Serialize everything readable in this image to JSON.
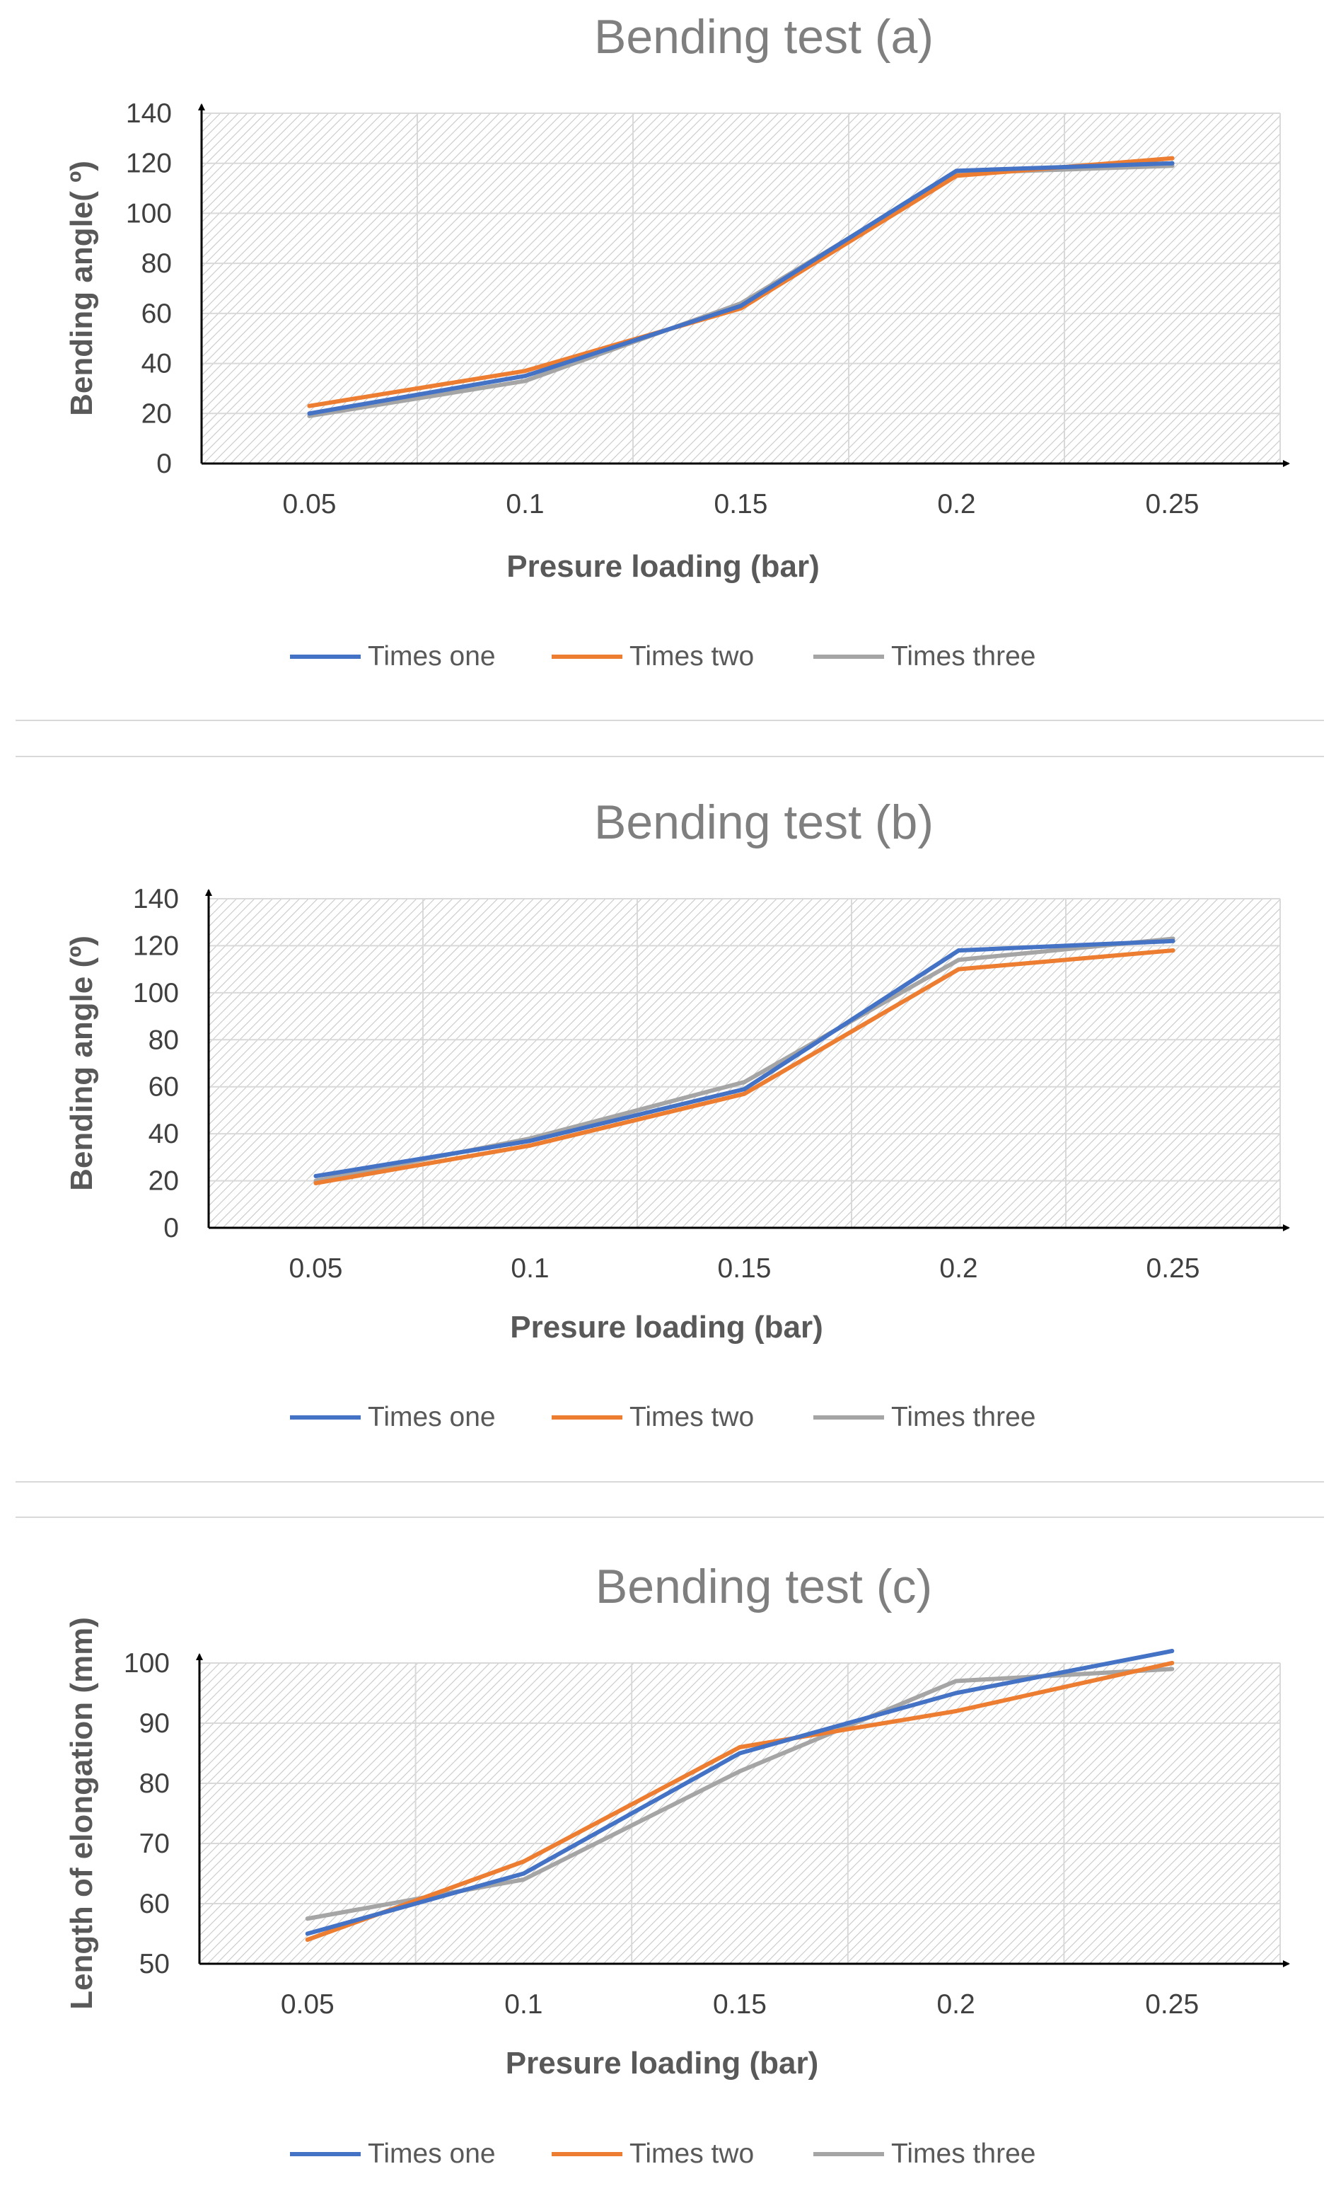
{
  "chart_data": [
    {
      "type": "line",
      "title": "Bending test (a)",
      "xlabel": "Presure loading (bar)",
      "ylabel": "Bending angle( º)",
      "categories": [
        "0.05",
        "0.1",
        "0.15",
        "0.2",
        "0.25"
      ],
      "ylim": [
        0,
        140
      ],
      "yticks": [
        0,
        20,
        40,
        60,
        80,
        100,
        120,
        140
      ],
      "grid": true,
      "legend": "bottom",
      "series": [
        {
          "name": "Times one",
          "color": "#4472c4",
          "values": [
            20,
            35,
            63,
            117,
            120
          ]
        },
        {
          "name": "Times two",
          "color": "#ed7d31",
          "values": [
            23,
            37,
            62,
            115,
            122
          ]
        },
        {
          "name": "Times three",
          "color": "#a5a5a5",
          "values": [
            19,
            33,
            64,
            116,
            119
          ]
        }
      ]
    },
    {
      "type": "line",
      "title": "Bending test (b)",
      "xlabel": "Presure loading (bar)",
      "ylabel": "Bending angle (º)",
      "categories": [
        "0.05",
        "0.1",
        "0.15",
        "0.2",
        "0.25"
      ],
      "ylim": [
        0,
        140
      ],
      "yticks": [
        0,
        20,
        40,
        60,
        80,
        100,
        120,
        140
      ],
      "grid": true,
      "legend": "bottom",
      "series": [
        {
          "name": "Times one",
          "color": "#4472c4",
          "values": [
            22,
            37,
            59,
            118,
            122
          ]
        },
        {
          "name": "Times two",
          "color": "#ed7d31",
          "values": [
            19,
            35,
            57,
            110,
            118
          ]
        },
        {
          "name": "Times three",
          "color": "#a5a5a5",
          "values": [
            20,
            38,
            62,
            114,
            123
          ]
        }
      ]
    },
    {
      "type": "line",
      "title": "Bending test (c)",
      "xlabel": "Presure loading (bar)",
      "ylabel": "Length of elongation (mm)",
      "categories": [
        "0.05",
        "0.1",
        "0.15",
        "0.2",
        "0.25"
      ],
      "ylim": [
        50,
        100
      ],
      "yticks": [
        50,
        60,
        70,
        80,
        90,
        100
      ],
      "grid": true,
      "legend": "bottom",
      "series": [
        {
          "name": "Times one",
          "color": "#4472c4",
          "values": [
            55,
            65,
            85,
            95,
            102
          ]
        },
        {
          "name": "Times two",
          "color": "#ed7d31",
          "values": [
            54,
            67,
            86,
            92,
            100
          ]
        },
        {
          "name": "Times three",
          "color": "#a5a5a5",
          "values": [
            57.5,
            64,
            82,
            97,
            99
          ]
        }
      ]
    }
  ]
}
